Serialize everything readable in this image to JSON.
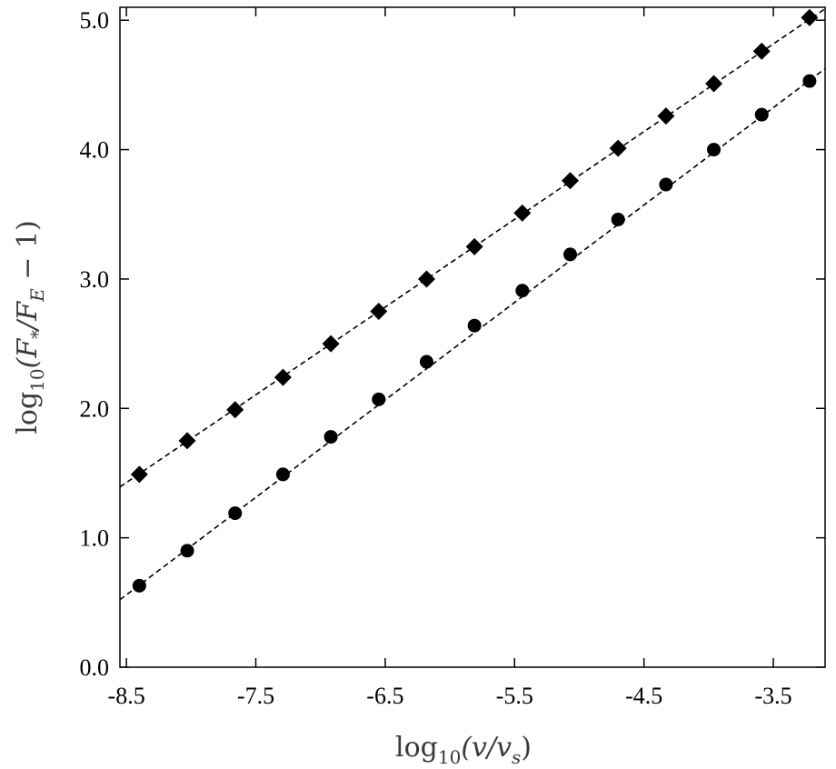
{
  "chart_data": {
    "type": "scatter",
    "xlabel": {
      "base": "log",
      "sub": "10",
      "rest": "(v/v",
      "sub2": "s",
      "close": ")"
    },
    "ylabel": {
      "base": "log",
      "sub": "10",
      "rest": "(F",
      "sub_a": "*",
      "mid": "/F",
      "sub_b": "E",
      "close": " − 1)"
    },
    "xlim": [
      -8.55,
      -3.1
    ],
    "ylim": [
      0.0,
      5.1
    ],
    "x_ticks": [
      -8.5,
      -7.5,
      -6.5,
      -5.5,
      -4.5,
      -3.5
    ],
    "x_tick_labels": [
      "-8.5",
      "-7.5",
      "-6.5",
      "-5.5",
      "-4.5",
      "-3.5"
    ],
    "y_ticks": [
      0.0,
      1.0,
      2.0,
      3.0,
      4.0,
      5.0
    ],
    "y_tick_labels": [
      "0.0",
      "1.0",
      "2.0",
      "3.0",
      "4.0",
      "5.0"
    ],
    "grid": false,
    "series": [
      {
        "marker": "diamond",
        "color": "#000000",
        "x": [
          -8.4,
          -8.03,
          -7.66,
          -7.29,
          -6.92,
          -6.55,
          -6.18,
          -5.81,
          -5.44,
          -5.07,
          -4.7,
          -4.33,
          -3.96,
          -3.59,
          -3.22
        ],
        "y": [
          1.49,
          1.75,
          1.99,
          2.24,
          2.5,
          2.75,
          3.0,
          3.25,
          3.51,
          3.76,
          4.01,
          4.26,
          4.51,
          4.76,
          5.02
        ],
        "fit": {
          "slope": 0.678,
          "intercept": 7.19
        }
      },
      {
        "marker": "circle",
        "color": "#000000",
        "x": [
          -8.4,
          -8.03,
          -7.66,
          -7.29,
          -6.92,
          -6.55,
          -6.18,
          -5.81,
          -5.44,
          -5.07,
          -4.7,
          -4.33,
          -3.96,
          -3.59,
          -3.22
        ],
        "y": [
          0.63,
          0.9,
          1.19,
          1.49,
          1.78,
          2.07,
          2.36,
          2.64,
          2.91,
          3.19,
          3.46,
          3.73,
          4.0,
          4.27,
          4.53
        ],
        "fit": {
          "slope": 0.753,
          "intercept": 6.96
        }
      }
    ]
  }
}
